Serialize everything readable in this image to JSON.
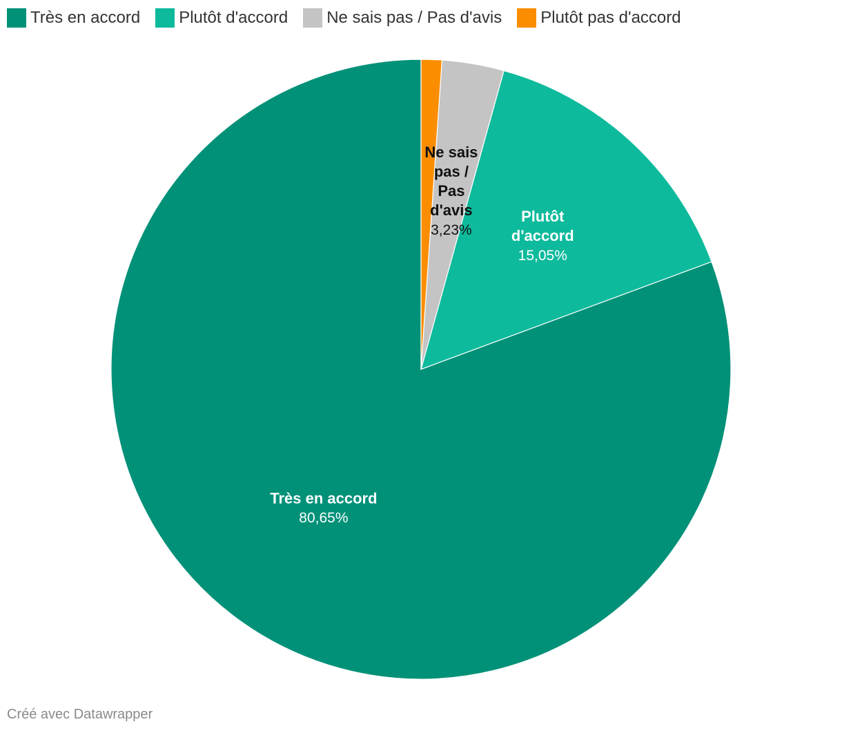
{
  "chart_data": {
    "type": "pie",
    "categories": [
      "Très en accord",
      "Plutôt d'accord",
      "Ne sais pas / Pas d'avis",
      "Plutôt pas d'accord"
    ],
    "values": [
      80.65,
      15.05,
      3.23,
      1.08
    ],
    "value_labels": [
      "80,65%",
      "15,05%",
      "3,23%",
      ""
    ],
    "slice_label_lines": [
      [
        "Très en accord"
      ],
      [
        "Plutôt",
        "d'accord"
      ],
      [
        "Ne sais",
        "pas /",
        "Pas",
        "d'avis"
      ],
      []
    ],
    "colors": [
      "#009178",
      "#0dba9c",
      "#c4c4c4",
      "#fb8d00"
    ],
    "label_colors": [
      "#ffffff",
      "#ffffff",
      "#111111",
      "#111111"
    ],
    "start": "top",
    "direction": "counterclockwise",
    "legend_position": "top-left"
  },
  "legend": [
    {
      "label": "Très en accord",
      "color": "#009178"
    },
    {
      "label": "Plutôt d'accord",
      "color": "#0dba9c"
    },
    {
      "label": "Ne sais pas / Pas d'avis",
      "color": "#c4c4c4"
    },
    {
      "label": "Plutôt pas d'accord",
      "color": "#fb8d00"
    }
  ],
  "footer": {
    "credit": "Créé avec Datawrapper"
  }
}
